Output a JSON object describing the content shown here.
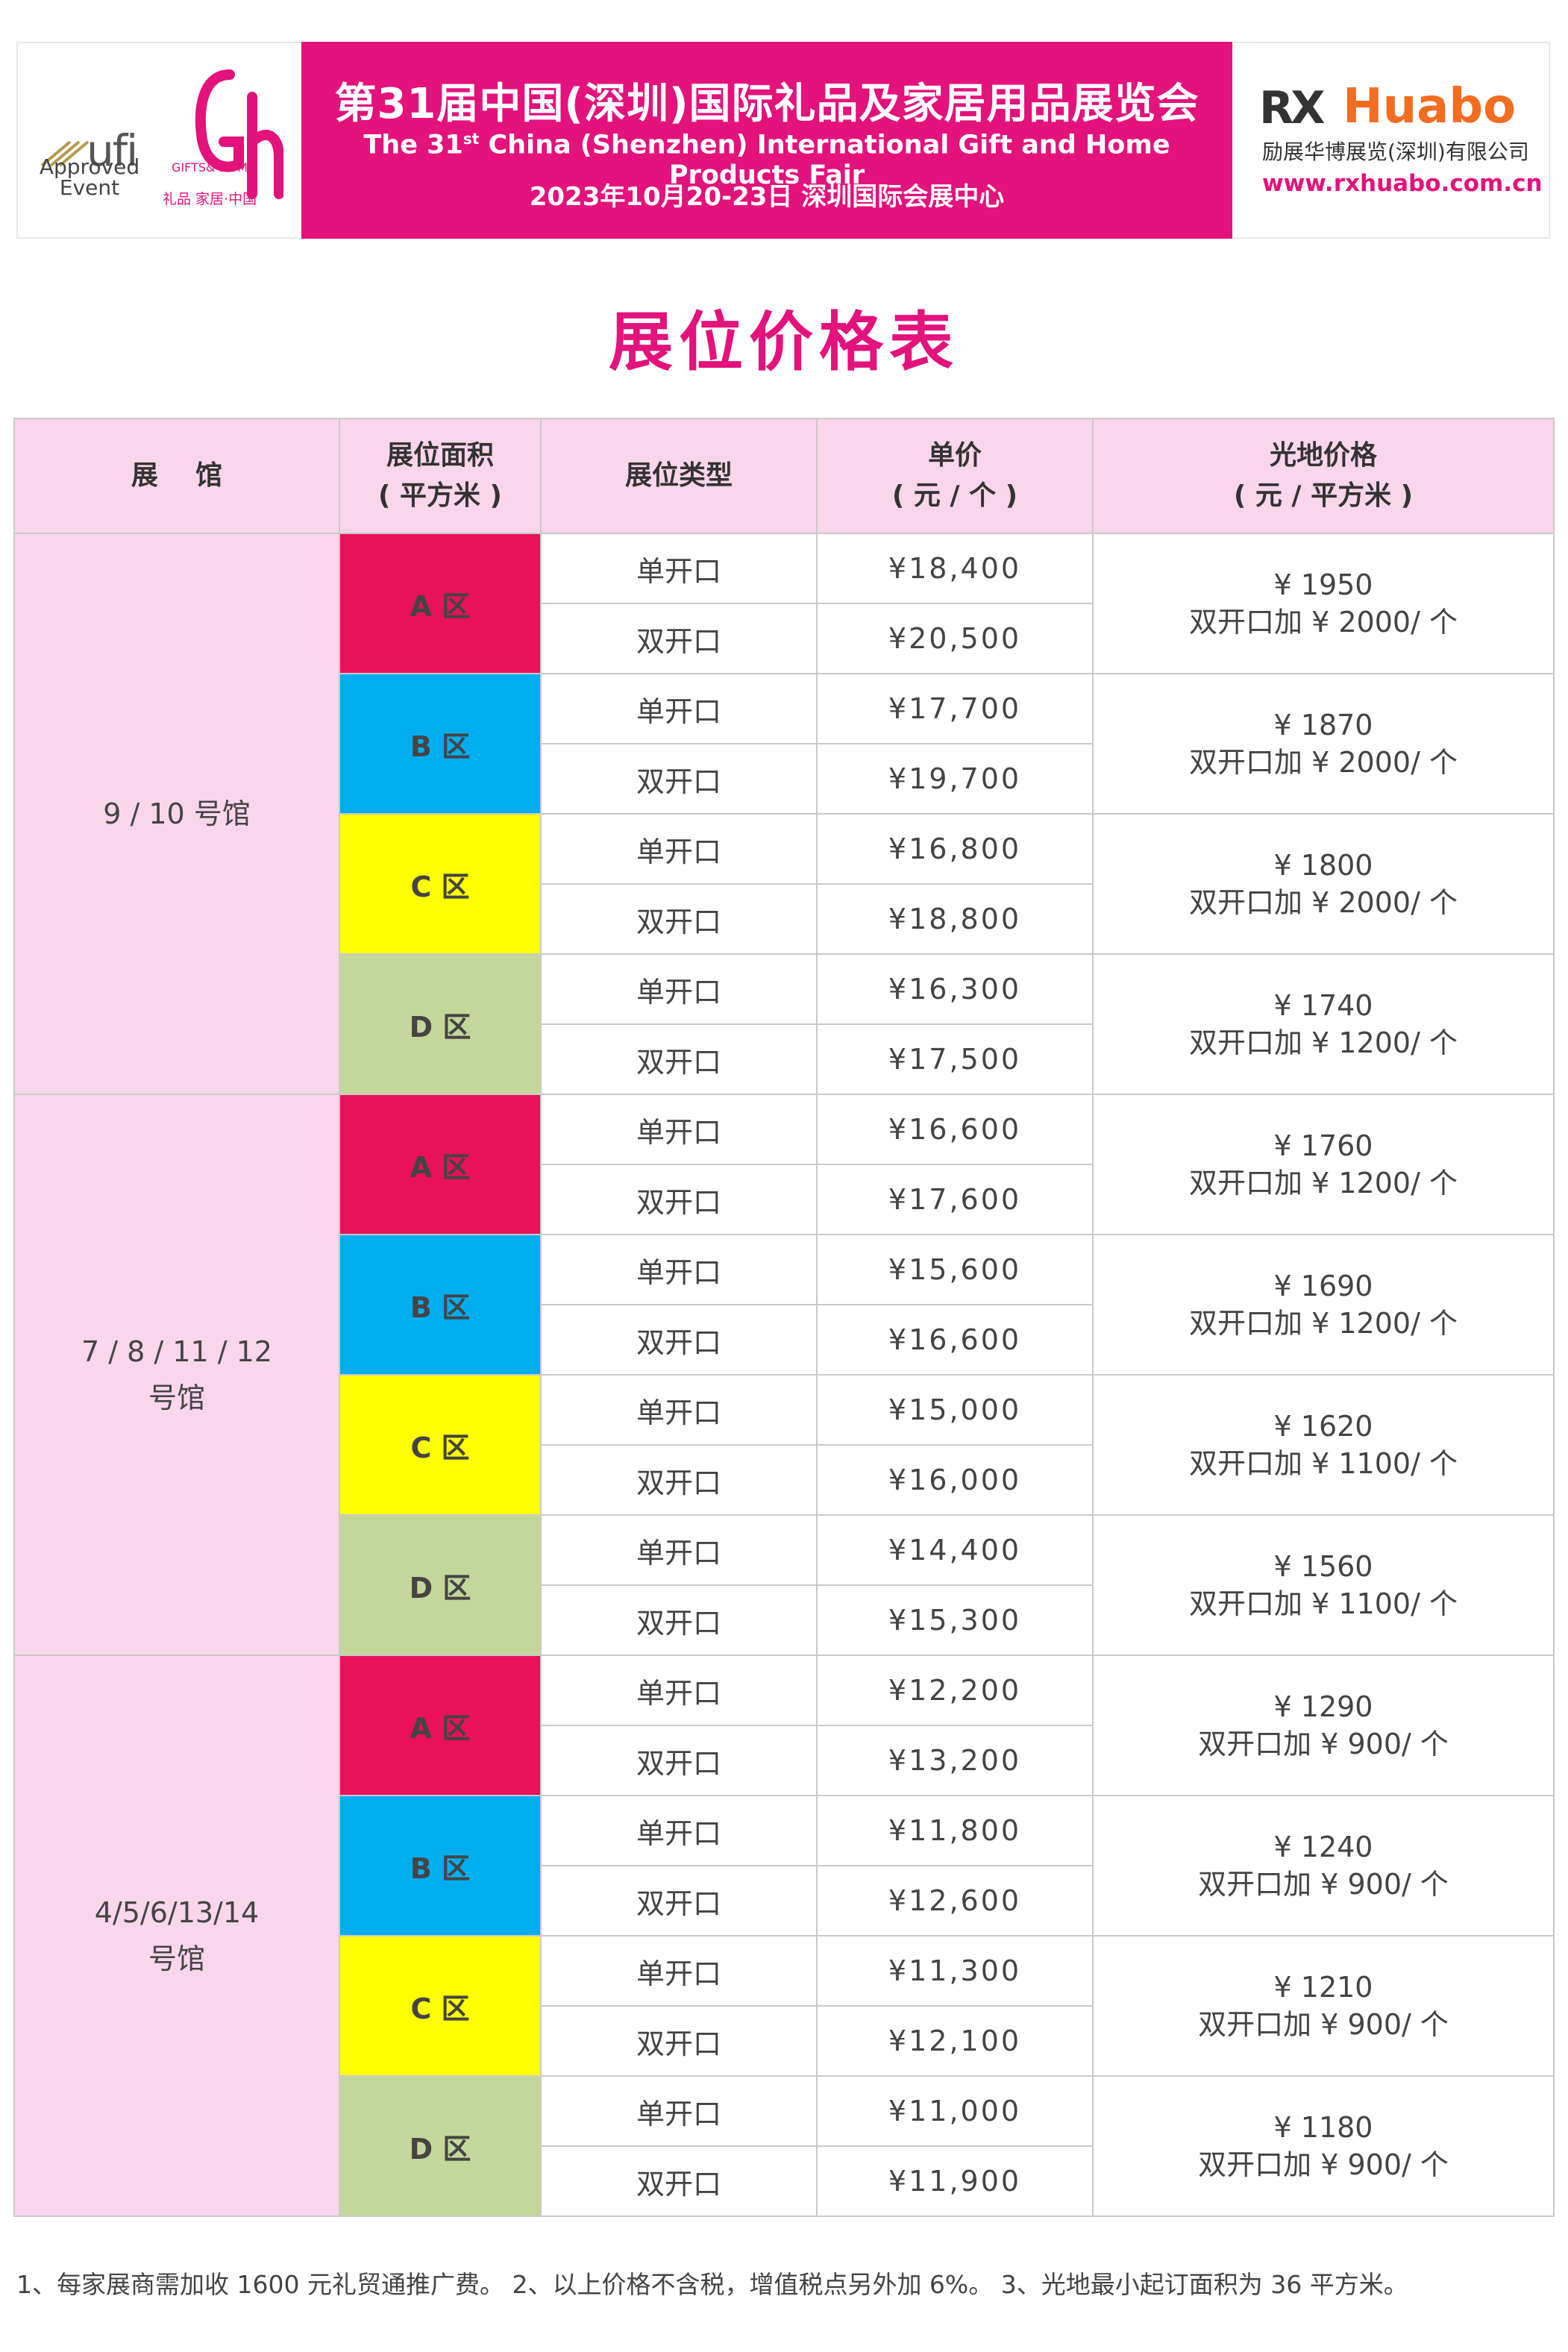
{
  "header": {
    "ufi_word": "ufi",
    "ufi_line1": "Approved",
    "ufi_line2": "Event",
    "gh_sub": "GIFTS& HOME",
    "gh_sub2": "礼品 家居·中国",
    "title_cn": "第31届中国(深圳)国际礼品及家居用品展览会",
    "title_en_pre": "The 31",
    "title_en_sup": "st",
    "title_en_post": " China (Shenzhen) International Gift and Home Products Fair",
    "date_venue": "2023年10月20-23日   深圳国际会展中心",
    "rx": "RX",
    "huabo": "Huabo",
    "company_cn": "励展华博展览(深圳)有限公司",
    "url": "www.rxhuabo.com.cn"
  },
  "page_title": "展位价格表",
  "table": {
    "headers": {
      "hall": "展    馆",
      "area_line1": "展位面积",
      "area_line2": "( 平方米 )",
      "type": "展位类型",
      "price_line1": "单价",
      "price_line2": "( 元 / 个 )",
      "bare_line1": "光地价格",
      "bare_line2": "( 元 / 平方米 )"
    },
    "groups": [
      {
        "hall_line1": "9 / 10 号馆",
        "hall_line2": "",
        "zones": [
          {
            "zone": "A 区",
            "color": "#e8115a",
            "single": "¥18,400",
            "double": "¥20,500",
            "bare_price": "¥ 1950",
            "bare_extra": "双开口加 ¥ 2000/ 个"
          },
          {
            "zone": "B 区",
            "color": "#00aeef",
            "single": "¥17,700",
            "double": "¥19,700",
            "bare_price": "¥ 1870",
            "bare_extra": "双开口加 ¥ 2000/ 个"
          },
          {
            "zone": "C 区",
            "color": "#ffff00",
            "single": "¥16,800",
            "double": "¥18,800",
            "bare_price": "¥ 1800",
            "bare_extra": "双开口加 ¥ 2000/ 个"
          },
          {
            "zone": "D 区",
            "color": "#c4d79b",
            "single": "¥16,300",
            "double": "¥17,500",
            "bare_price": "¥ 1740",
            "bare_extra": "双开口加 ¥ 1200/ 个"
          }
        ]
      },
      {
        "hall_line1": "7 / 8 / 11 / 12",
        "hall_line2": "号馆",
        "zones": [
          {
            "zone": "A 区",
            "color": "#e8115a",
            "single": "¥16,600",
            "double": "¥17,600",
            "bare_price": "¥ 1760",
            "bare_extra": "双开口加 ¥ 1200/ 个"
          },
          {
            "zone": "B 区",
            "color": "#00aeef",
            "single": "¥15,600",
            "double": "¥16,600",
            "bare_price": "¥ 1690",
            "bare_extra": "双开口加 ¥ 1200/ 个"
          },
          {
            "zone": "C 区",
            "color": "#ffff00",
            "single": "¥15,000",
            "double": "¥16,000",
            "bare_price": "¥ 1620",
            "bare_extra": "双开口加 ¥ 1100/ 个"
          },
          {
            "zone": "D 区",
            "color": "#c4d79b",
            "single": "¥14,400",
            "double": "¥15,300",
            "bare_price": "¥ 1560",
            "bare_extra": "双开口加 ¥ 1100/ 个"
          }
        ]
      },
      {
        "hall_line1": "4/5/6/13/14",
        "hall_line2": "号馆",
        "zones": [
          {
            "zone": "A 区",
            "color": "#e8115a",
            "single": "¥12,200",
            "double": "¥13,200",
            "bare_price": "¥ 1290",
            "bare_extra": "双开口加 ¥ 900/ 个"
          },
          {
            "zone": "B 区",
            "color": "#00aeef",
            "single": "¥11,800",
            "double": "¥12,600",
            "bare_price": "¥ 1240",
            "bare_extra": "双开口加 ¥ 900/ 个"
          },
          {
            "zone": "C 区",
            "color": "#ffff00",
            "single": "¥11,300",
            "double": "¥12,100",
            "bare_price": "¥ 1210",
            "bare_extra": "双开口加 ¥ 900/ 个"
          },
          {
            "zone": "D 区",
            "color": "#c4d79b",
            "single": "¥11,000",
            "double": "¥11,900",
            "bare_price": "¥ 1180",
            "bare_extra": "双开口加 ¥ 900/ 个"
          }
        ]
      }
    ],
    "single_label": "单开口",
    "double_label": "双开口"
  },
  "footnote": "1、每家展商需加收 1600 元礼贸通推广费。 2、以上价格不含税，增值税点另外加 6%。 3、光地最小起订面积为 36 平方米。",
  "colors": {
    "brand_magenta": "#e3127c",
    "header_pink": "#f9d6eb",
    "huabo_orange": "#f26d21"
  }
}
